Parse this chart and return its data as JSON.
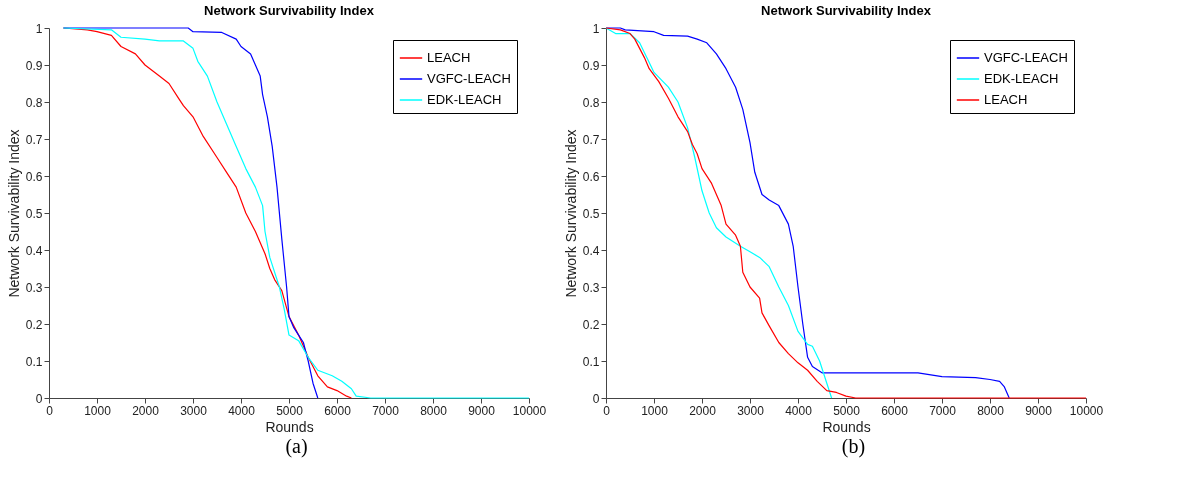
{
  "chart_data": [
    {
      "type": "line",
      "title": "Network Survivability Index",
      "xlabel": "Rounds",
      "ylabel": "Network Survivability Index",
      "xlim": [
        0,
        10000
      ],
      "xticks": [
        0,
        1000,
        2000,
        3000,
        4000,
        5000,
        6000,
        7000,
        8000,
        9000,
        10000
      ],
      "ylim": [
        0,
        1
      ],
      "yticks": [
        0,
        0.1,
        0.2,
        0.3,
        0.4,
        0.5,
        0.6,
        0.7,
        0.8,
        0.9,
        1
      ],
      "grid": false,
      "legend": "top right",
      "marker": "none",
      "line_style": "solid",
      "annotations": [
        "(a)"
      ],
      "series": [
        {
          "name": "LEACH",
          "color": "#ff0000",
          "x": [
            300,
            800,
            1000,
            1300,
            1500,
            1800,
            2000,
            2300,
            2500,
            2700,
            2800,
            3000,
            3200,
            3500,
            3700,
            3900,
            4100,
            4300,
            4500,
            4600,
            4700,
            4850,
            5000,
            5200,
            5400,
            5600,
            5800,
            6000,
            6200,
            6300
          ],
          "values": [
            1,
            0.995,
            0.99,
            0.98,
            0.95,
            0.93,
            0.9,
            0.87,
            0.85,
            0.81,
            0.79,
            0.76,
            0.71,
            0.65,
            0.61,
            0.57,
            0.5,
            0.45,
            0.39,
            0.35,
            0.32,
            0.29,
            0.22,
            0.17,
            0.11,
            0.06,
            0.03,
            0.02,
            0.005,
            0
          ]
        },
        {
          "name": "VGFC-LEACH",
          "color": "#0000ff",
          "x": [
            300,
            2200,
            2900,
            3000,
            3600,
            3900,
            4000,
            4200,
            4300,
            4400,
            4450,
            4550,
            4650,
            4750,
            4850,
            4950,
            5000,
            5100,
            5200,
            5300,
            5400,
            5500,
            5600
          ],
          "values": [
            1,
            1,
            1,
            0.99,
            0.988,
            0.97,
            0.95,
            0.93,
            0.9,
            0.87,
            0.82,
            0.76,
            0.68,
            0.57,
            0.43,
            0.3,
            0.22,
            0.19,
            0.17,
            0.15,
            0.1,
            0.04,
            0
          ]
        },
        {
          "name": "EDK-LEACH",
          "color": "#00ffff",
          "x": [
            300,
            1300,
            1500,
            2000,
            2300,
            2800,
            3000,
            3100,
            3300,
            3500,
            3700,
            3900,
            4100,
            4300,
            4450,
            4500,
            4600,
            4800,
            4900,
            5000,
            5200,
            5400,
            5600,
            5900,
            6100,
            6300,
            6400,
            6700,
            10000
          ],
          "values": [
            1,
            0.995,
            0.975,
            0.97,
            0.965,
            0.965,
            0.945,
            0.91,
            0.87,
            0.8,
            0.74,
            0.68,
            0.62,
            0.57,
            0.52,
            0.45,
            0.38,
            0.3,
            0.24,
            0.17,
            0.155,
            0.11,
            0.075,
            0.06,
            0.045,
            0.025,
            0.005,
            0,
            0
          ]
        }
      ]
    },
    {
      "type": "line",
      "title": "Network Survivability Index",
      "xlabel": "Rounds",
      "ylabel": "Network Survivability Index",
      "xlim": [
        0,
        10000
      ],
      "xticks": [
        0,
        1000,
        2000,
        3000,
        4000,
        5000,
        6000,
        7000,
        8000,
        9000,
        10000
      ],
      "ylim": [
        0,
        1
      ],
      "yticks": [
        0,
        0.1,
        0.2,
        0.3,
        0.4,
        0.5,
        0.6,
        0.7,
        0.8,
        0.9,
        1
      ],
      "grid": false,
      "legend": "top right",
      "marker": "none",
      "line_style": "solid",
      "annotations": [
        "(b)"
      ],
      "series": [
        {
          "name": "VGFC-LEACH",
          "color": "#0000ff",
          "x": [
            0,
            300,
            400,
            1000,
            1200,
            1700,
            1900,
            2100,
            2300,
            2500,
            2700,
            2850,
            3000,
            3100,
            3250,
            3400,
            3600,
            3800,
            3900,
            4000,
            4100,
            4200,
            4300,
            4500,
            6500,
            7000,
            7700,
            8000,
            8200,
            8300,
            8400
          ],
          "values": [
            1,
            1,
            0.995,
            0.99,
            0.98,
            0.978,
            0.97,
            0.96,
            0.93,
            0.89,
            0.84,
            0.78,
            0.69,
            0.61,
            0.55,
            0.535,
            0.52,
            0.47,
            0.41,
            0.3,
            0.2,
            0.11,
            0.085,
            0.068,
            0.068,
            0.058,
            0.055,
            0.05,
            0.045,
            0.03,
            0
          ]
        },
        {
          "name": "EDK-LEACH",
          "color": "#00ffff",
          "x": [
            0,
            200,
            500,
            700,
            850,
            1000,
            1300,
            1500,
            1700,
            1850,
            2000,
            2150,
            2300,
            2500,
            2800,
            3000,
            3200,
            3400,
            3600,
            3800,
            4000,
            4200,
            4300,
            4450,
            4600,
            4700
          ],
          "values": [
            1,
            0.985,
            0.985,
            0.96,
            0.92,
            0.88,
            0.84,
            0.8,
            0.73,
            0.65,
            0.56,
            0.5,
            0.46,
            0.435,
            0.41,
            0.395,
            0.38,
            0.355,
            0.3,
            0.25,
            0.18,
            0.145,
            0.14,
            0.1,
            0.04,
            0
          ]
        },
        {
          "name": "LEACH",
          "color": "#ff0000",
          "x": [
            0,
            300,
            500,
            600,
            800,
            900,
            1100,
            1300,
            1500,
            1700,
            1800,
            1900,
            2000,
            2200,
            2400,
            2500,
            2700,
            2800,
            2850,
            3000,
            3200,
            3250,
            3400,
            3600,
            3800,
            4000,
            4200,
            4400,
            4600,
            4800,
            5000,
            5200,
            10000
          ],
          "values": [
            1,
            0.995,
            0.985,
            0.97,
            0.92,
            0.89,
            0.855,
            0.81,
            0.76,
            0.72,
            0.685,
            0.66,
            0.62,
            0.58,
            0.52,
            0.47,
            0.44,
            0.41,
            0.34,
            0.3,
            0.27,
            0.23,
            0.195,
            0.15,
            0.12,
            0.095,
            0.075,
            0.045,
            0.02,
            0.015,
            0.005,
            0,
            0
          ]
        }
      ]
    }
  ]
}
